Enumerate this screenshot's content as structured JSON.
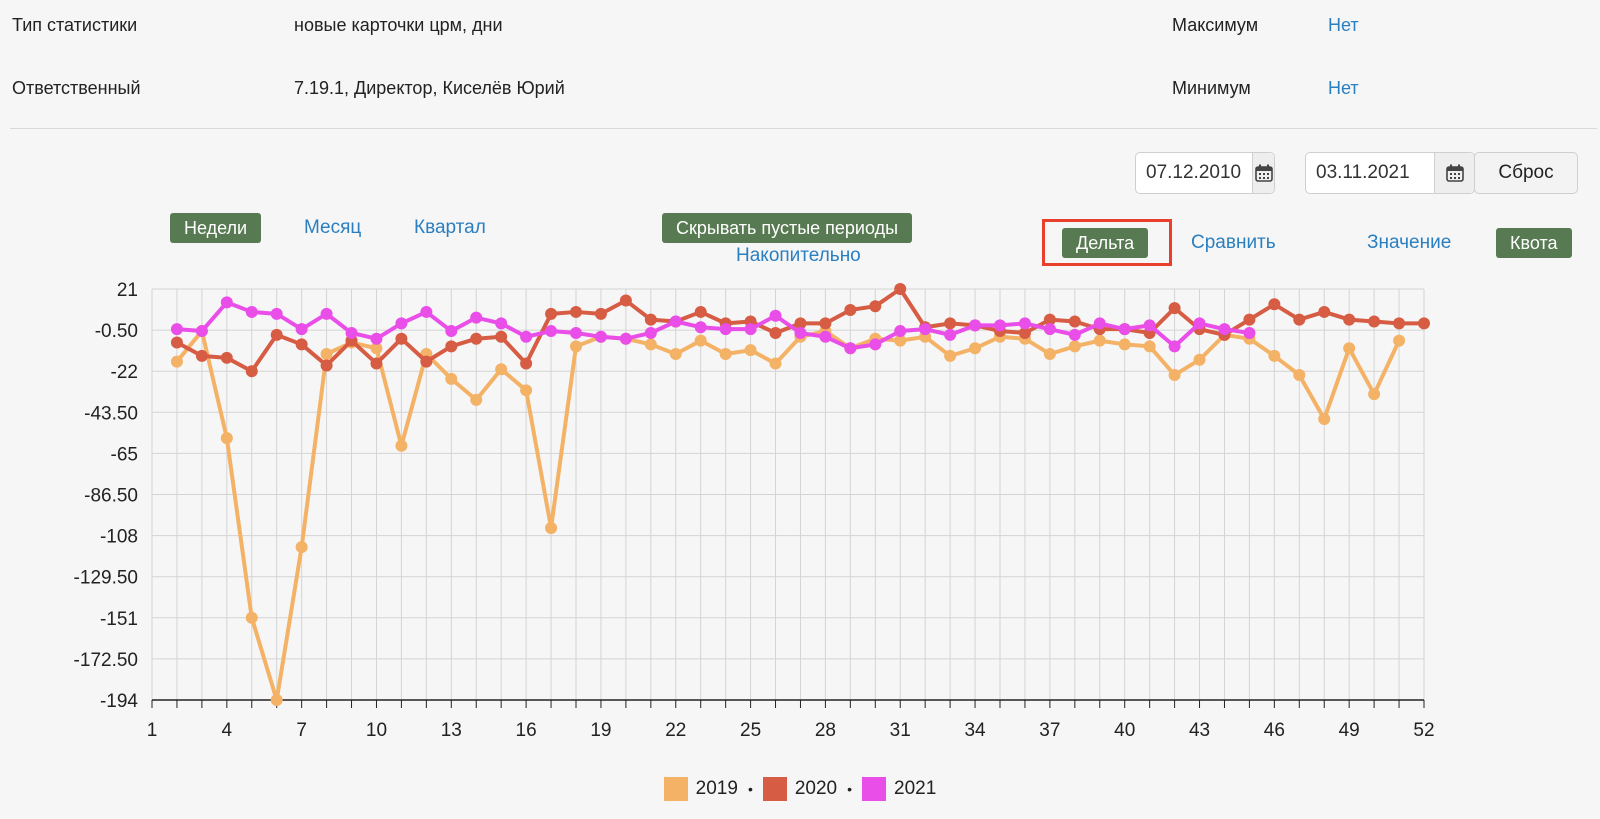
{
  "info": {
    "stat_type_label": "Тип статистики",
    "stat_type_value": "новые карточки црм, дни",
    "responsible_label": "Ответственный",
    "responsible_value": "7.19.1, Директор, Киселёв Юрий",
    "max_label": "Максимум",
    "max_value": "Нет",
    "min_label": "Минимум",
    "min_value": "Нет"
  },
  "filters": {
    "date_from": "07.12.2010",
    "date_to": "03.11.2021",
    "reset_label": "Сброс"
  },
  "period": {
    "weeks": "Недели",
    "month": "Месяц",
    "quarter": "Квартал"
  },
  "options": {
    "hide_empty": "Скрывать пустые периоды",
    "cumulative": "Накопительно"
  },
  "modes": {
    "delta": "Дельта",
    "compare": "Сравнить",
    "value": "Значение",
    "quota": "Квота"
  },
  "chart_data": {
    "type": "line",
    "x": [
      1,
      2,
      3,
      4,
      5,
      6,
      7,
      8,
      9,
      10,
      11,
      12,
      13,
      14,
      15,
      16,
      17,
      18,
      19,
      20,
      21,
      22,
      23,
      24,
      25,
      26,
      27,
      28,
      29,
      30,
      31,
      32,
      33,
      34,
      35,
      36,
      37,
      38,
      39,
      40,
      41,
      42,
      43,
      44,
      45,
      46,
      47,
      48,
      49,
      50,
      51,
      52
    ],
    "x_ticks": [
      "1",
      "4",
      "7",
      "10",
      "13",
      "16",
      "19",
      "22",
      "25",
      "28",
      "31",
      "34",
      "37",
      "40",
      "43",
      "46",
      "49",
      "52"
    ],
    "y_ticks": [
      "21",
      "-0.50",
      "-22",
      "-43.50",
      "-65",
      "-86.50",
      "-108",
      "-129.50",
      "-151",
      "-172.50",
      "-194"
    ],
    "ylim": [
      -194,
      21
    ],
    "series": [
      {
        "name": "2019",
        "color": "#f4b266",
        "values": [
          null,
          -17,
          -1,
          -57,
          -151,
          -194,
          -114,
          -13,
          -7,
          -10,
          -61,
          -13,
          -26,
          -37,
          -21,
          -32,
          -104,
          -9,
          -4,
          -5,
          -8,
          -13,
          -6,
          -13,
          -11,
          -18,
          -4,
          -1,
          -10,
          -5,
          -6,
          -4,
          -14,
          -10,
          -4,
          -5,
          -13,
          -9,
          -6,
          -8,
          -9,
          -24,
          -16,
          -3,
          -5,
          -14,
          -24,
          -47,
          -10,
          -34,
          -6,
          null
        ]
      },
      {
        "name": "2020",
        "color": "#d65c44",
        "values": [
          null,
          -7,
          -14,
          -15,
          -22,
          -3,
          -8,
          -19,
          -6,
          -18,
          -5,
          -17,
          -9,
          -5,
          -4,
          -18,
          8,
          9,
          8,
          15,
          5,
          4,
          9,
          3,
          4,
          -2,
          3,
          3,
          10,
          12,
          21,
          1,
          3,
          2,
          -1,
          -2,
          5,
          4,
          0,
          0,
          -2,
          11,
          0,
          -3,
          5,
          13,
          5,
          9,
          5,
          4,
          3,
          3
        ]
      },
      {
        "name": "2021",
        "color": "#e94ee8",
        "values": [
          null,
          0,
          -1,
          14,
          9,
          8,
          0,
          8,
          -2,
          -5,
          3,
          9,
          -1,
          6,
          3,
          -4,
          -1,
          -2,
          -4,
          -5,
          -2,
          4,
          1,
          0,
          0,
          7,
          -2,
          -4,
          -10,
          -8,
          -1,
          0,
          -3,
          2,
          2,
          3,
          0,
          -3,
          3,
          0,
          2,
          -9,
          3,
          0,
          -2,
          null,
          null,
          null,
          null,
          null,
          null,
          null
        ]
      }
    ],
    "legend": [
      "2019",
      "2020",
      "2021"
    ]
  }
}
